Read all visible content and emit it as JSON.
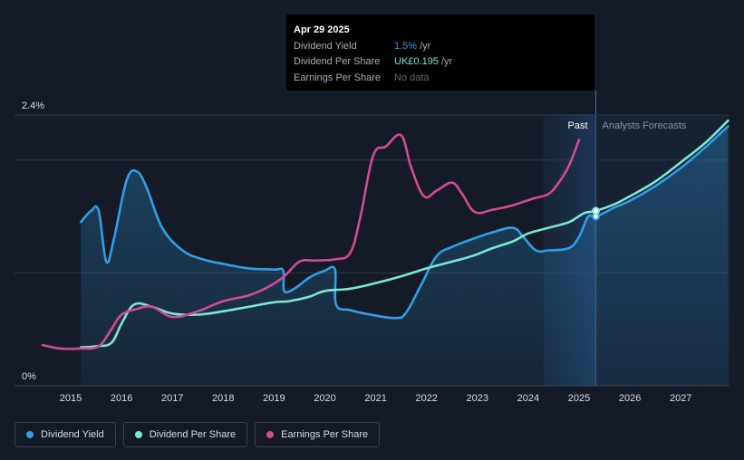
{
  "chart_data": {
    "type": "line",
    "y_tick_labels": [
      "2.4%",
      "0%"
    ],
    "x_ticks": [
      "2015",
      "2016",
      "2017",
      "2018",
      "2019",
      "2020",
      "2021",
      "2022",
      "2023",
      "2024",
      "2025",
      "2026",
      "2027"
    ],
    "region_labels": {
      "past": "Past",
      "forecast": "Analysts Forecasts"
    },
    "series": [
      {
        "name": "Dividend Yield",
        "color": "#2f9ee8",
        "points": [
          [
            2015.2,
            1.45
          ],
          [
            2015.4,
            1.55
          ],
          [
            2015.55,
            1.55
          ],
          [
            2015.7,
            1.1
          ],
          [
            2015.85,
            1.3
          ],
          [
            2016.1,
            1.82
          ],
          [
            2016.3,
            1.9
          ],
          [
            2016.5,
            1.75
          ],
          [
            2016.8,
            1.4
          ],
          [
            2017.2,
            1.2
          ],
          [
            2017.6,
            1.12
          ],
          [
            2018.0,
            1.08
          ],
          [
            2018.5,
            1.04
          ],
          [
            2019.0,
            1.03
          ],
          [
            2019.18,
            1.02
          ],
          [
            2019.2,
            0.84
          ],
          [
            2019.4,
            0.86
          ],
          [
            2019.7,
            0.96
          ],
          [
            2020.0,
            1.02
          ],
          [
            2020.2,
            1.03
          ],
          [
            2020.22,
            0.72
          ],
          [
            2020.5,
            0.67
          ],
          [
            2020.9,
            0.63
          ],
          [
            2021.4,
            0.6
          ],
          [
            2021.6,
            0.65
          ],
          [
            2021.9,
            0.9
          ],
          [
            2022.2,
            1.15
          ],
          [
            2022.5,
            1.23
          ],
          [
            2022.9,
            1.3
          ],
          [
            2023.3,
            1.36
          ],
          [
            2023.7,
            1.4
          ],
          [
            2023.9,
            1.32
          ],
          [
            2024.15,
            1.2
          ],
          [
            2024.4,
            1.2
          ],
          [
            2024.8,
            1.22
          ],
          [
            2025.0,
            1.32
          ],
          [
            2025.18,
            1.5
          ],
          [
            2025.33,
            1.5
          ],
          [
            2025.7,
            1.58
          ],
          [
            2026.0,
            1.64
          ],
          [
            2026.5,
            1.77
          ],
          [
            2027.0,
            1.93
          ],
          [
            2027.5,
            2.12
          ],
          [
            2027.93,
            2.3
          ]
        ]
      },
      {
        "name": "Dividend Per Share",
        "color": "#7de6d0",
        "points": [
          [
            2015.2,
            0.34
          ],
          [
            2015.5,
            0.35
          ],
          [
            2015.8,
            0.38
          ],
          [
            2016.0,
            0.55
          ],
          [
            2016.25,
            0.72
          ],
          [
            2016.6,
            0.7
          ],
          [
            2017.0,
            0.64
          ],
          [
            2017.5,
            0.63
          ],
          [
            2018.0,
            0.66
          ],
          [
            2018.5,
            0.7
          ],
          [
            2019.0,
            0.74
          ],
          [
            2019.3,
            0.75
          ],
          [
            2019.7,
            0.79
          ],
          [
            2020.0,
            0.84
          ],
          [
            2020.5,
            0.86
          ],
          [
            2021.0,
            0.91
          ],
          [
            2021.5,
            0.97
          ],
          [
            2022.0,
            1.04
          ],
          [
            2022.5,
            1.1
          ],
          [
            2022.9,
            1.15
          ],
          [
            2023.3,
            1.22
          ],
          [
            2023.7,
            1.28
          ],
          [
            2024.0,
            1.35
          ],
          [
            2024.4,
            1.4
          ],
          [
            2024.8,
            1.45
          ],
          [
            2025.1,
            1.53
          ],
          [
            2025.33,
            1.55
          ],
          [
            2025.7,
            1.61
          ],
          [
            2026.0,
            1.68
          ],
          [
            2026.5,
            1.81
          ],
          [
            2027.0,
            1.98
          ],
          [
            2027.5,
            2.16
          ],
          [
            2027.93,
            2.35
          ]
        ]
      },
      {
        "name": "Earnings Per Share",
        "color": "#cf4b93",
        "points": [
          [
            2014.45,
            0.36
          ],
          [
            2014.8,
            0.33
          ],
          [
            2015.2,
            0.33
          ],
          [
            2015.55,
            0.35
          ],
          [
            2015.8,
            0.5
          ],
          [
            2016.0,
            0.63
          ],
          [
            2016.3,
            0.68
          ],
          [
            2016.6,
            0.7
          ],
          [
            2017.0,
            0.61
          ],
          [
            2017.5,
            0.66
          ],
          [
            2018.0,
            0.75
          ],
          [
            2018.5,
            0.8
          ],
          [
            2018.9,
            0.88
          ],
          [
            2019.2,
            0.97
          ],
          [
            2019.5,
            1.1
          ],
          [
            2019.8,
            1.11
          ],
          [
            2020.2,
            1.12
          ],
          [
            2020.5,
            1.18
          ],
          [
            2020.7,
            1.5
          ],
          [
            2020.95,
            2.04
          ],
          [
            2021.2,
            2.12
          ],
          [
            2021.5,
            2.22
          ],
          [
            2021.7,
            1.93
          ],
          [
            2021.95,
            1.68
          ],
          [
            2022.2,
            1.73
          ],
          [
            2022.5,
            1.8
          ],
          [
            2022.7,
            1.7
          ],
          [
            2022.95,
            1.54
          ],
          [
            2023.3,
            1.56
          ],
          [
            2023.7,
            1.6
          ],
          [
            2024.1,
            1.66
          ],
          [
            2024.4,
            1.7
          ],
          [
            2024.6,
            1.8
          ],
          [
            2024.8,
            1.95
          ],
          [
            2025.0,
            2.18
          ]
        ]
      }
    ]
  },
  "tooltip": {
    "date": "Apr 29 2025",
    "rows": [
      {
        "label": "Dividend Yield",
        "value": "1.5%",
        "unit": "/yr"
      },
      {
        "label": "Dividend Per Share",
        "value": "UK£0.195",
        "unit": "/yr"
      },
      {
        "label": "Earnings Per Share",
        "value": "No data",
        "unit": ""
      }
    ]
  },
  "legend": [
    {
      "label": "Dividend Yield",
      "color": "#2f9ee8"
    },
    {
      "label": "Dividend Per Share",
      "color": "#7de6d0"
    },
    {
      "label": "Earnings Per Share",
      "color": "#cf4b93"
    }
  ]
}
